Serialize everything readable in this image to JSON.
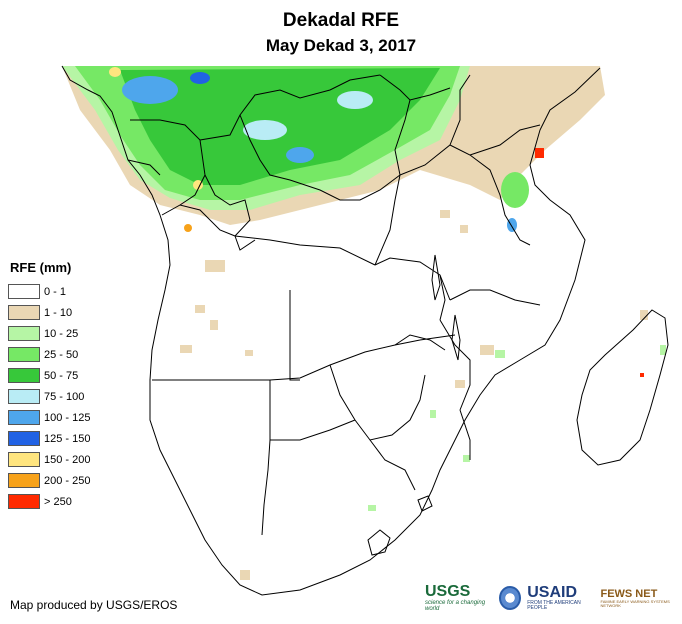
{
  "header": {
    "title": "Dekadal RFE",
    "subtitle": "May Dekad 3, 2017"
  },
  "legend": {
    "title": "RFE (mm)",
    "items": [
      {
        "label": "0 - 1",
        "color": "#ffffff"
      },
      {
        "label": "1 - 10",
        "color": "#ead7b4"
      },
      {
        "label": "10 - 25",
        "color": "#b6f5a5"
      },
      {
        "label": "25 - 50",
        "color": "#76e865"
      },
      {
        "label": "50 - 75",
        "color": "#37c83a"
      },
      {
        "label": "75 - 100",
        "color": "#b9ecf5"
      },
      {
        "label": "100 - 125",
        "color": "#4ea6ec"
      },
      {
        "label": "125 - 150",
        "color": "#2162e4"
      },
      {
        "label": "150 - 200",
        "color": "#ffe57f"
      },
      {
        "label": "200 - 250",
        "color": "#f7a21a"
      },
      {
        "label": "> 250",
        "color": "#ff2a00"
      }
    ]
  },
  "footer": {
    "credit": "Map produced by USGS/EROS"
  },
  "logos": {
    "usgs": "USGS",
    "usgs_tagline": "science for a changing world",
    "usaid": "USAID",
    "usaid_tagline": "FROM THE AMERICAN PEOPLE",
    "fews": "FEWS NET",
    "fews_tagline": "FAMINE EARLY WARNING SYSTEMS NETWORK"
  }
}
